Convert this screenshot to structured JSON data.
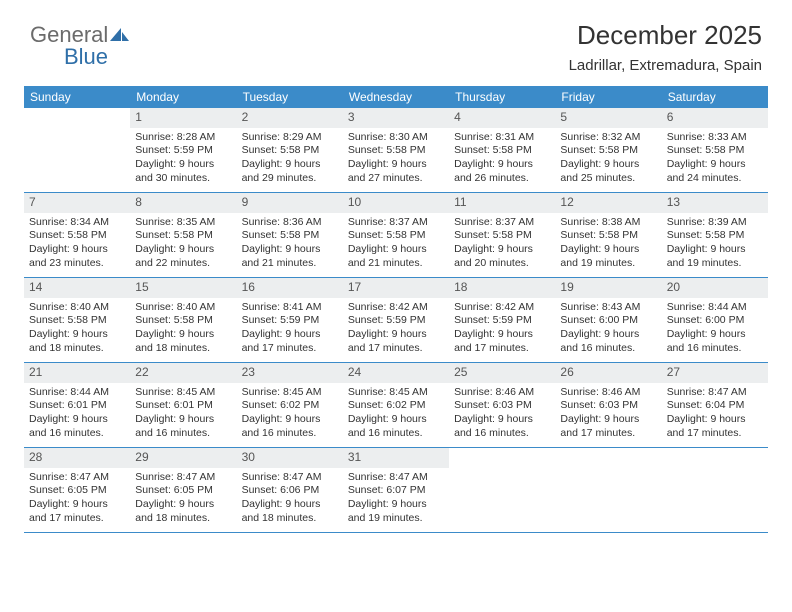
{
  "logo": {
    "text1": "General",
    "text2": "Blue",
    "color1": "#6b6b6b",
    "color2": "#2f6fa8"
  },
  "header": {
    "month_title": "December 2025",
    "location": "Ladrillar, Extremadura, Spain"
  },
  "colors": {
    "header_bg": "#3b8bc9",
    "header_text": "#ffffff",
    "strip_bg": "#eceeef",
    "row_border": "#3b8bc9",
    "body_text": "#333333"
  },
  "days_of_week": [
    "Sunday",
    "Monday",
    "Tuesday",
    "Wednesday",
    "Thursday",
    "Friday",
    "Saturday"
  ],
  "weeks": [
    [
      {
        "n": "",
        "sr": "",
        "ss": "",
        "dl": ""
      },
      {
        "n": "1",
        "sr": "Sunrise: 8:28 AM",
        "ss": "Sunset: 5:59 PM",
        "dl": "Daylight: 9 hours and 30 minutes."
      },
      {
        "n": "2",
        "sr": "Sunrise: 8:29 AM",
        "ss": "Sunset: 5:58 PM",
        "dl": "Daylight: 9 hours and 29 minutes."
      },
      {
        "n": "3",
        "sr": "Sunrise: 8:30 AM",
        "ss": "Sunset: 5:58 PM",
        "dl": "Daylight: 9 hours and 27 minutes."
      },
      {
        "n": "4",
        "sr": "Sunrise: 8:31 AM",
        "ss": "Sunset: 5:58 PM",
        "dl": "Daylight: 9 hours and 26 minutes."
      },
      {
        "n": "5",
        "sr": "Sunrise: 8:32 AM",
        "ss": "Sunset: 5:58 PM",
        "dl": "Daylight: 9 hours and 25 minutes."
      },
      {
        "n": "6",
        "sr": "Sunrise: 8:33 AM",
        "ss": "Sunset: 5:58 PM",
        "dl": "Daylight: 9 hours and 24 minutes."
      }
    ],
    [
      {
        "n": "7",
        "sr": "Sunrise: 8:34 AM",
        "ss": "Sunset: 5:58 PM",
        "dl": "Daylight: 9 hours and 23 minutes."
      },
      {
        "n": "8",
        "sr": "Sunrise: 8:35 AM",
        "ss": "Sunset: 5:58 PM",
        "dl": "Daylight: 9 hours and 22 minutes."
      },
      {
        "n": "9",
        "sr": "Sunrise: 8:36 AM",
        "ss": "Sunset: 5:58 PM",
        "dl": "Daylight: 9 hours and 21 minutes."
      },
      {
        "n": "10",
        "sr": "Sunrise: 8:37 AM",
        "ss": "Sunset: 5:58 PM",
        "dl": "Daylight: 9 hours and 21 minutes."
      },
      {
        "n": "11",
        "sr": "Sunrise: 8:37 AM",
        "ss": "Sunset: 5:58 PM",
        "dl": "Daylight: 9 hours and 20 minutes."
      },
      {
        "n": "12",
        "sr": "Sunrise: 8:38 AM",
        "ss": "Sunset: 5:58 PM",
        "dl": "Daylight: 9 hours and 19 minutes."
      },
      {
        "n": "13",
        "sr": "Sunrise: 8:39 AM",
        "ss": "Sunset: 5:58 PM",
        "dl": "Daylight: 9 hours and 19 minutes."
      }
    ],
    [
      {
        "n": "14",
        "sr": "Sunrise: 8:40 AM",
        "ss": "Sunset: 5:58 PM",
        "dl": "Daylight: 9 hours and 18 minutes."
      },
      {
        "n": "15",
        "sr": "Sunrise: 8:40 AM",
        "ss": "Sunset: 5:58 PM",
        "dl": "Daylight: 9 hours and 18 minutes."
      },
      {
        "n": "16",
        "sr": "Sunrise: 8:41 AM",
        "ss": "Sunset: 5:59 PM",
        "dl": "Daylight: 9 hours and 17 minutes."
      },
      {
        "n": "17",
        "sr": "Sunrise: 8:42 AM",
        "ss": "Sunset: 5:59 PM",
        "dl": "Daylight: 9 hours and 17 minutes."
      },
      {
        "n": "18",
        "sr": "Sunrise: 8:42 AM",
        "ss": "Sunset: 5:59 PM",
        "dl": "Daylight: 9 hours and 17 minutes."
      },
      {
        "n": "19",
        "sr": "Sunrise: 8:43 AM",
        "ss": "Sunset: 6:00 PM",
        "dl": "Daylight: 9 hours and 16 minutes."
      },
      {
        "n": "20",
        "sr": "Sunrise: 8:44 AM",
        "ss": "Sunset: 6:00 PM",
        "dl": "Daylight: 9 hours and 16 minutes."
      }
    ],
    [
      {
        "n": "21",
        "sr": "Sunrise: 8:44 AM",
        "ss": "Sunset: 6:01 PM",
        "dl": "Daylight: 9 hours and 16 minutes."
      },
      {
        "n": "22",
        "sr": "Sunrise: 8:45 AM",
        "ss": "Sunset: 6:01 PM",
        "dl": "Daylight: 9 hours and 16 minutes."
      },
      {
        "n": "23",
        "sr": "Sunrise: 8:45 AM",
        "ss": "Sunset: 6:02 PM",
        "dl": "Daylight: 9 hours and 16 minutes."
      },
      {
        "n": "24",
        "sr": "Sunrise: 8:45 AM",
        "ss": "Sunset: 6:02 PM",
        "dl": "Daylight: 9 hours and 16 minutes."
      },
      {
        "n": "25",
        "sr": "Sunrise: 8:46 AM",
        "ss": "Sunset: 6:03 PM",
        "dl": "Daylight: 9 hours and 16 minutes."
      },
      {
        "n": "26",
        "sr": "Sunrise: 8:46 AM",
        "ss": "Sunset: 6:03 PM",
        "dl": "Daylight: 9 hours and 17 minutes."
      },
      {
        "n": "27",
        "sr": "Sunrise: 8:47 AM",
        "ss": "Sunset: 6:04 PM",
        "dl": "Daylight: 9 hours and 17 minutes."
      }
    ],
    [
      {
        "n": "28",
        "sr": "Sunrise: 8:47 AM",
        "ss": "Sunset: 6:05 PM",
        "dl": "Daylight: 9 hours and 17 minutes."
      },
      {
        "n": "29",
        "sr": "Sunrise: 8:47 AM",
        "ss": "Sunset: 6:05 PM",
        "dl": "Daylight: 9 hours and 18 minutes."
      },
      {
        "n": "30",
        "sr": "Sunrise: 8:47 AM",
        "ss": "Sunset: 6:06 PM",
        "dl": "Daylight: 9 hours and 18 minutes."
      },
      {
        "n": "31",
        "sr": "Sunrise: 8:47 AM",
        "ss": "Sunset: 6:07 PM",
        "dl": "Daylight: 9 hours and 19 minutes."
      },
      {
        "n": "",
        "sr": "",
        "ss": "",
        "dl": ""
      },
      {
        "n": "",
        "sr": "",
        "ss": "",
        "dl": ""
      },
      {
        "n": "",
        "sr": "",
        "ss": "",
        "dl": ""
      }
    ]
  ]
}
